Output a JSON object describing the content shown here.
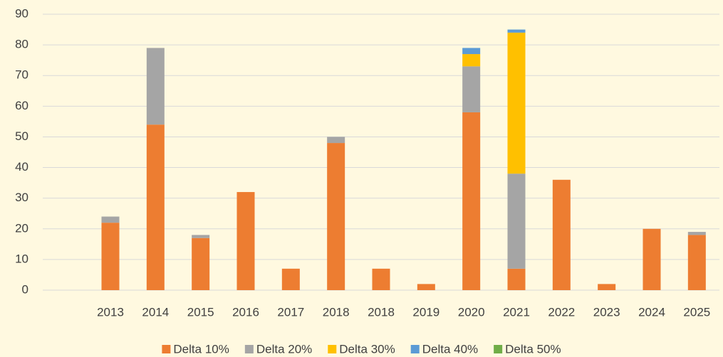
{
  "chart_data": {
    "type": "stacked_bar",
    "categories": [
      null,
      "2013",
      "2014",
      "2015",
      "2016",
      "2017",
      "2018",
      "2018",
      "2019",
      "2020",
      "2021",
      "2022",
      "2023",
      "2024",
      "2025"
    ],
    "series": [
      {
        "name": "Delta 10%",
        "color": "#ed7d31",
        "values": [
          null,
          22,
          54,
          17,
          32,
          7,
          48,
          7,
          2,
          58,
          7,
          36,
          2,
          20,
          18
        ]
      },
      {
        "name": "Delta 20%",
        "color": "#a5a5a5",
        "values": [
          null,
          2,
          25,
          1,
          0,
          0,
          2,
          0,
          0,
          15,
          31,
          0,
          0,
          0,
          1
        ]
      },
      {
        "name": "Delta 30%",
        "color": "#ffc000",
        "values": [
          null,
          0,
          0,
          0,
          0,
          0,
          0,
          0,
          0,
          4,
          46,
          0,
          0,
          0,
          0
        ]
      },
      {
        "name": "Delta 40%",
        "color": "#5b9bd5",
        "values": [
          null,
          0,
          0,
          0,
          0,
          0,
          0,
          0,
          0,
          2,
          1,
          0,
          0,
          0,
          0
        ]
      },
      {
        "name": "Delta 50%",
        "color": "#70ad47",
        "values": [
          null,
          0,
          0,
          0,
          0,
          0,
          0,
          0,
          0,
          0,
          0,
          0,
          0,
          0,
          0
        ]
      }
    ],
    "ylim": [
      0,
      90
    ],
    "yticks": [
      0,
      10,
      20,
      30,
      40,
      50,
      60,
      70,
      80,
      90
    ],
    "grid": true,
    "legend": "bottom"
  }
}
